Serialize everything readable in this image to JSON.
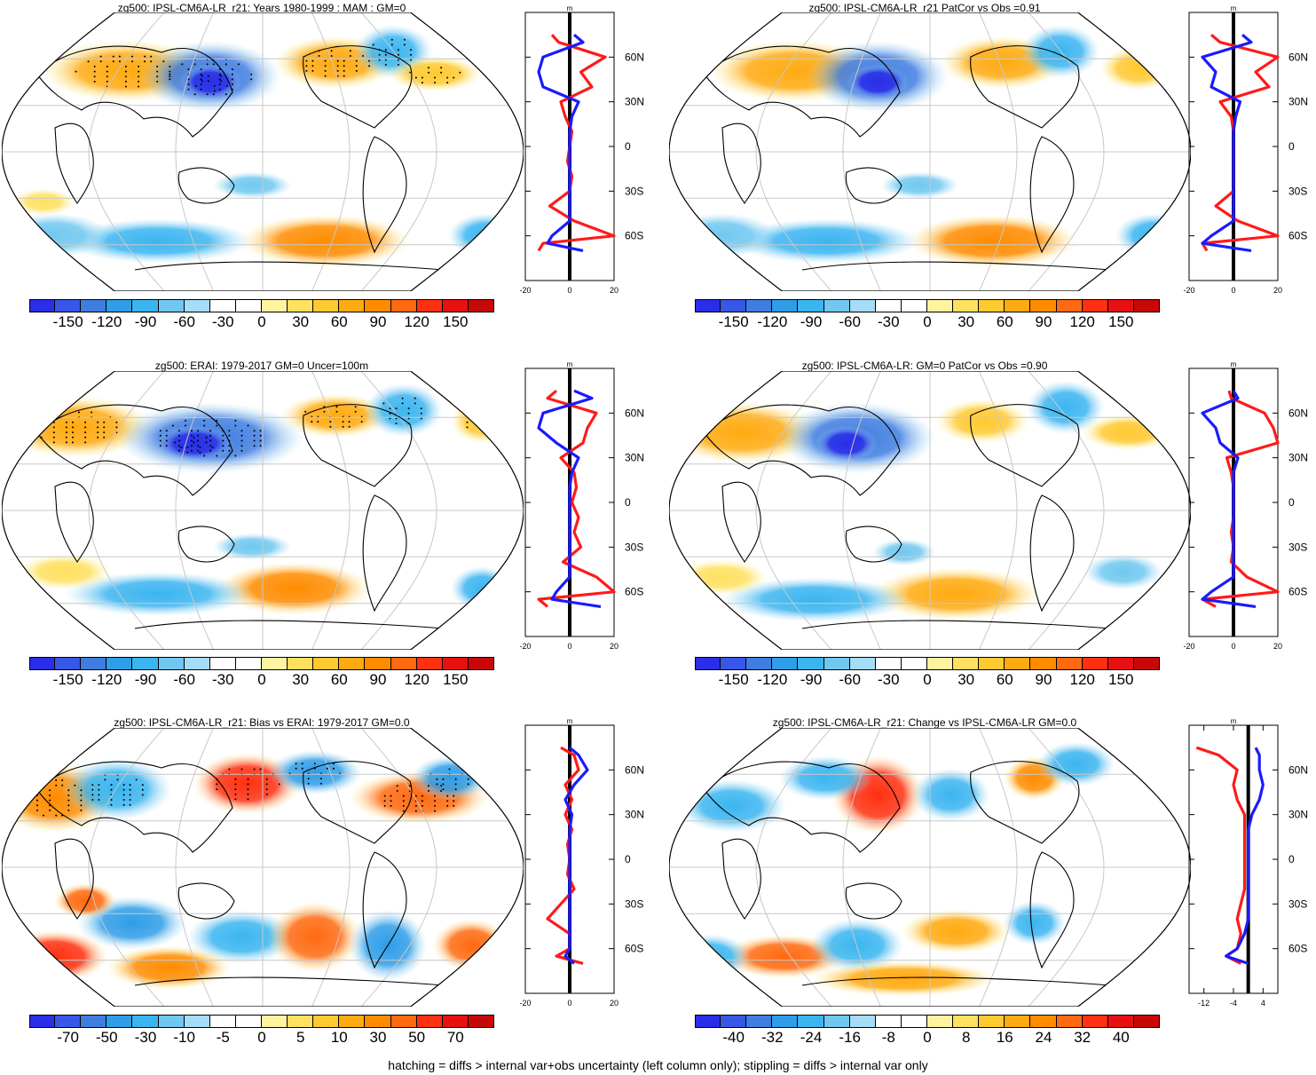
{
  "colors": {
    "palette": [
      "#2a2ee8",
      "#3757e6",
      "#3f7de0",
      "#2f9de8",
      "#3bb5f0",
      "#70c8f0",
      "#a5dcf7",
      "#ffffff",
      "#ffffff",
      "#fff3a0",
      "#ffe060",
      "#ffc930",
      "#ffaa10",
      "#ff8c00",
      "#ff6a10",
      "#ff3010",
      "#e81010",
      "#c80808"
    ],
    "positive": "#ff1a1a",
    "negative": "#1a1aff",
    "stipple": "#000000",
    "grid": "#c8c8c8"
  },
  "footer": "hatching = diffs > internal var+obs uncertainty (left column only); stippling = diffs > internal var only",
  "panels": [
    {
      "title": "zg500: IPSL-CM6A-LR_r21: Years 1980-1999 : MAM : GM=0",
      "colorbar_labels": [
        "-150",
        "-120",
        "-90",
        "-60",
        "-30",
        "0",
        "30",
        "60",
        "90",
        "120",
        "150"
      ],
      "profile": {
        "unit": "m",
        "xticks": [
          "-20",
          "0",
          "20"
        ],
        "ylabels": [
          "60N",
          "30N",
          "0",
          "30S",
          "60S"
        ]
      }
    },
    {
      "title": "zg500: IPSL-CM6A-LR_r21 PatCor vs Obs =0.91",
      "colorbar_labels": [
        "-150",
        "-120",
        "-90",
        "-60",
        "-30",
        "0",
        "30",
        "60",
        "90",
        "120",
        "150"
      ],
      "profile": {
        "unit": "m",
        "xticks": [
          "-20",
          "0",
          "20"
        ],
        "ylabels": [
          "60N",
          "30N",
          "0",
          "30S",
          "60S"
        ]
      }
    },
    {
      "title": "zg500: ERAI: 1979-2017 GM=0 Uncer=100m",
      "colorbar_labels": [
        "-150",
        "-120",
        "-90",
        "-60",
        "-30",
        "0",
        "30",
        "60",
        "90",
        "120",
        "150"
      ],
      "profile": {
        "unit": "m",
        "xticks": [
          "-20",
          "0",
          "20"
        ],
        "ylabels": [
          "60N",
          "30N",
          "0",
          "30S",
          "60S"
        ]
      }
    },
    {
      "title": "zg500: IPSL-CM6A-LR: GM=0 PatCor vs Obs =0.90",
      "colorbar_labels": [
        "-150",
        "-120",
        "-90",
        "-60",
        "-30",
        "0",
        "30",
        "60",
        "90",
        "120",
        "150"
      ],
      "profile": {
        "unit": "m",
        "xticks": [
          "-20",
          "0",
          "20"
        ],
        "ylabels": [
          "60N",
          "30N",
          "0",
          "30S",
          "60S"
        ]
      }
    },
    {
      "title": "zg500: IPSL-CM6A-LR_r21: Bias vs ERAI: 1979-2017 GM=0.0",
      "colorbar_labels": [
        "-70",
        "-50",
        "-30",
        "-10",
        "-5",
        "0",
        "5",
        "10",
        "30",
        "50",
        "70"
      ],
      "profile": {
        "unit": "m",
        "xticks": [
          "-20",
          "0",
          "20"
        ],
        "ylabels": [
          "60N",
          "30N",
          "0",
          "30S",
          "60S"
        ]
      }
    },
    {
      "title": "zg500: IPSL-CM6A-LR_r21: Change vs IPSL-CM6A-LR GM=0.0",
      "colorbar_labels": [
        "-40",
        "-32",
        "-24",
        "-16",
        "-8",
        "0",
        "8",
        "16",
        "24",
        "32",
        "40"
      ],
      "profile": {
        "unit": "m",
        "xticks": [
          "-12",
          "-4",
          "4"
        ],
        "ylabels": [
          "60N",
          "30N",
          "0",
          "30S",
          "60S"
        ]
      }
    }
  ],
  "chart_data": [
    {
      "type": "heatmap",
      "title": "zg500: IPSL-CM6A-LR_r21: Years 1980-1999 : MAM : GM=0",
      "colorbar_ticks": [
        -150,
        -120,
        -90,
        -60,
        -30,
        0,
        30,
        60,
        90,
        120,
        150
      ],
      "profile": {
        "type": "line",
        "xlim": [
          -20,
          20
        ],
        "xticks": [
          -20,
          0,
          20
        ],
        "yticks": [
          "60N",
          "30N",
          "0",
          "30S",
          "60S"
        ],
        "series": [
          {
            "color": "positive",
            "lat": [
              75,
              70,
              60,
              50,
              40,
              30,
              20,
              10,
              0,
              -10,
              -20,
              -30,
              -40,
              -50,
              -60,
              -65,
              -70
            ],
            "x": [
              -8,
              -5,
              16,
              5,
              10,
              -4,
              -2,
              1,
              0,
              -1,
              1,
              0,
              -9,
              2,
              20,
              -12,
              -14
            ]
          },
          {
            "color": "negative",
            "lat": [
              75,
              70,
              60,
              50,
              40,
              30,
              20,
              10,
              0,
              -10,
              -20,
              -30,
              -40,
              -50,
              -60,
              -65,
              -70
            ],
            "x": [
              2,
              6,
              -12,
              -14,
              -12,
              4,
              1,
              0,
              0,
              0,
              0,
              0,
              0,
              0,
              -8,
              -10,
              6
            ]
          }
        ]
      }
    },
    {
      "type": "heatmap",
      "title": "zg500: IPSL-CM6A-LR_r21 PatCor vs Obs =0.91",
      "colorbar_ticks": [
        -150,
        -120,
        -90,
        -60,
        -30,
        0,
        30,
        60,
        90,
        120,
        150
      ],
      "profile": {
        "type": "line",
        "xlim": [
          -20,
          20
        ],
        "xticks": [
          -20,
          0,
          20
        ],
        "yticks": [
          "60N",
          "30N",
          "0",
          "30S",
          "60S"
        ],
        "series": [
          {
            "color": "positive",
            "lat": [
              75,
              70,
              60,
              50,
              40,
              30,
              20,
              10,
              0,
              -10,
              -20,
              -30,
              -40,
              -50,
              -60,
              -65,
              -70
            ],
            "x": [
              -10,
              -6,
              20,
              10,
              16,
              -6,
              -1,
              0,
              0,
              0,
              0,
              0,
              -8,
              2,
              22,
              -14,
              -12
            ]
          },
          {
            "color": "negative",
            "lat": [
              75,
              70,
              60,
              50,
              40,
              30,
              20,
              10,
              0,
              -10,
              -20,
              -30,
              -40,
              -50,
              -60,
              -65,
              -70
            ],
            "x": [
              4,
              8,
              -14,
              -8,
              -10,
              3,
              1,
              0,
              0,
              0,
              0,
              0,
              0,
              0,
              -10,
              -14,
              8
            ]
          }
        ]
      }
    },
    {
      "type": "heatmap",
      "title": "zg500: ERAI: 1979-2017 GM=0 Uncer=100m",
      "colorbar_ticks": [
        -150,
        -120,
        -90,
        -60,
        -30,
        0,
        30,
        60,
        90,
        120,
        150
      ],
      "profile": {
        "type": "line",
        "xlim": [
          -20,
          20
        ],
        "xticks": [
          -20,
          0,
          20
        ],
        "yticks": [
          "60N",
          "30N",
          "0",
          "30S",
          "60S"
        ],
        "series": [
          {
            "color": "positive",
            "lat": [
              75,
              70,
              60,
              50,
              40,
              30,
              20,
              10,
              0,
              -10,
              -20,
              -30,
              -40,
              -50,
              -60,
              -65,
              -70
            ],
            "x": [
              -6,
              -10,
              12,
              8,
              6,
              -4,
              2,
              3,
              1,
              4,
              2,
              5,
              -3,
              12,
              20,
              -14,
              -10
            ]
          },
          {
            "color": "negative",
            "lat": [
              75,
              70,
              60,
              50,
              40,
              30,
              20,
              10,
              0,
              -10,
              -20,
              -30,
              -40,
              -50,
              -60,
              -65,
              -70
            ],
            "x": [
              2,
              10,
              -12,
              -14,
              -6,
              4,
              1,
              0,
              0,
              0,
              0,
              0,
              0,
              0,
              -6,
              -8,
              14
            ]
          }
        ]
      }
    },
    {
      "type": "heatmap",
      "title": "zg500: IPSL-CM6A-LR: GM=0 PatCor vs Obs =0.90",
      "colorbar_ticks": [
        -150,
        -120,
        -90,
        -60,
        -30,
        0,
        30,
        60,
        90,
        120,
        150
      ],
      "profile": {
        "type": "line",
        "xlim": [
          -20,
          20
        ],
        "xticks": [
          -20,
          0,
          20
        ],
        "yticks": [
          "60N",
          "30N",
          "0",
          "30S",
          "60S"
        ],
        "series": [
          {
            "color": "positive",
            "lat": [
              75,
              70,
              60,
              50,
              40,
              30,
              20,
              10,
              0,
              -10,
              -20,
              -30,
              -40,
              -50,
              -60,
              -65,
              -70
            ],
            "x": [
              -2,
              -1,
              14,
              18,
              20,
              -3,
              -1,
              0,
              0,
              0,
              -1,
              0,
              -1,
              6,
              20,
              -14,
              -8
            ]
          },
          {
            "color": "negative",
            "lat": [
              75,
              70,
              60,
              50,
              40,
              30,
              20,
              10,
              0,
              -10,
              -20,
              -30,
              -40,
              -50,
              -60,
              -65,
              -70
            ],
            "x": [
              0,
              2,
              -14,
              -8,
              -6,
              2,
              0,
              0,
              0,
              0,
              0,
              0,
              0,
              0,
              -10,
              -14,
              10
            ]
          }
        ]
      }
    },
    {
      "type": "heatmap",
      "title": "zg500: IPSL-CM6A-LR_r21: Bias vs ERAI: 1979-2017 GM=0.0",
      "colorbar_ticks": [
        -70,
        -50,
        -30,
        -10,
        -5,
        0,
        5,
        10,
        30,
        50,
        70
      ],
      "profile": {
        "type": "line",
        "xlim": [
          -20,
          20
        ],
        "xticks": [
          -20,
          0,
          20
        ],
        "yticks": [
          "60N",
          "30N",
          "0",
          "30S",
          "60S"
        ],
        "series": [
          {
            "color": "positive",
            "lat": [
              75,
              70,
              60,
              50,
              40,
              30,
              20,
              10,
              0,
              -10,
              -20,
              -30,
              -40,
              -50,
              -60,
              -65,
              -70
            ],
            "x": [
              -4,
              2,
              4,
              -2,
              1,
              -2,
              1,
              -1,
              0,
              -1,
              2,
              -4,
              -10,
              0,
              0,
              -6,
              6
            ]
          },
          {
            "color": "negative",
            "lat": [
              75,
              70,
              60,
              50,
              40,
              30,
              20,
              10,
              0,
              -10,
              -20,
              -30,
              -40,
              -50,
              -60,
              -65,
              -70
            ],
            "x": [
              0,
              4,
              8,
              2,
              -2,
              1,
              0,
              0,
              0,
              0,
              0,
              0,
              0,
              0,
              0,
              -2,
              2
            ]
          }
        ]
      }
    },
    {
      "type": "heatmap",
      "title": "zg500: IPSL-CM6A-LR_r21: Change vs IPSL-CM6A-LR GM=0.0",
      "colorbar_ticks": [
        -40,
        -32,
        -24,
        -16,
        -8,
        0,
        8,
        16,
        24,
        32,
        40
      ],
      "profile": {
        "type": "line",
        "xlim": [
          -16,
          8
        ],
        "xticks": [
          -12,
          -4,
          4
        ],
        "yticks": [
          "60N",
          "30N",
          "0",
          "30S",
          "60S"
        ],
        "series": [
          {
            "color": "positive",
            "lat": [
              75,
              70,
              60,
              50,
              40,
              30,
              20,
              10,
              0,
              -10,
              -20,
              -30,
              -40,
              -50,
              -60,
              -65,
              -70
            ],
            "x": [
              -14,
              -8,
              -3,
              -4,
              -3,
              -1,
              -1,
              -1,
              -1,
              -1,
              -1,
              -2,
              -3,
              -2,
              -3,
              -6,
              -2
            ]
          },
          {
            "color": "negative",
            "lat": [
              75,
              70,
              60,
              50,
              40,
              30,
              20,
              10,
              0,
              -10,
              -20,
              -30,
              -40,
              -50,
              -60,
              -65,
              -70
            ],
            "x": [
              2,
              3,
              3,
              4,
              3,
              1,
              0,
              0,
              0,
              0,
              0,
              0,
              0,
              -1,
              -3,
              -6,
              0
            ]
          }
        ]
      }
    }
  ]
}
